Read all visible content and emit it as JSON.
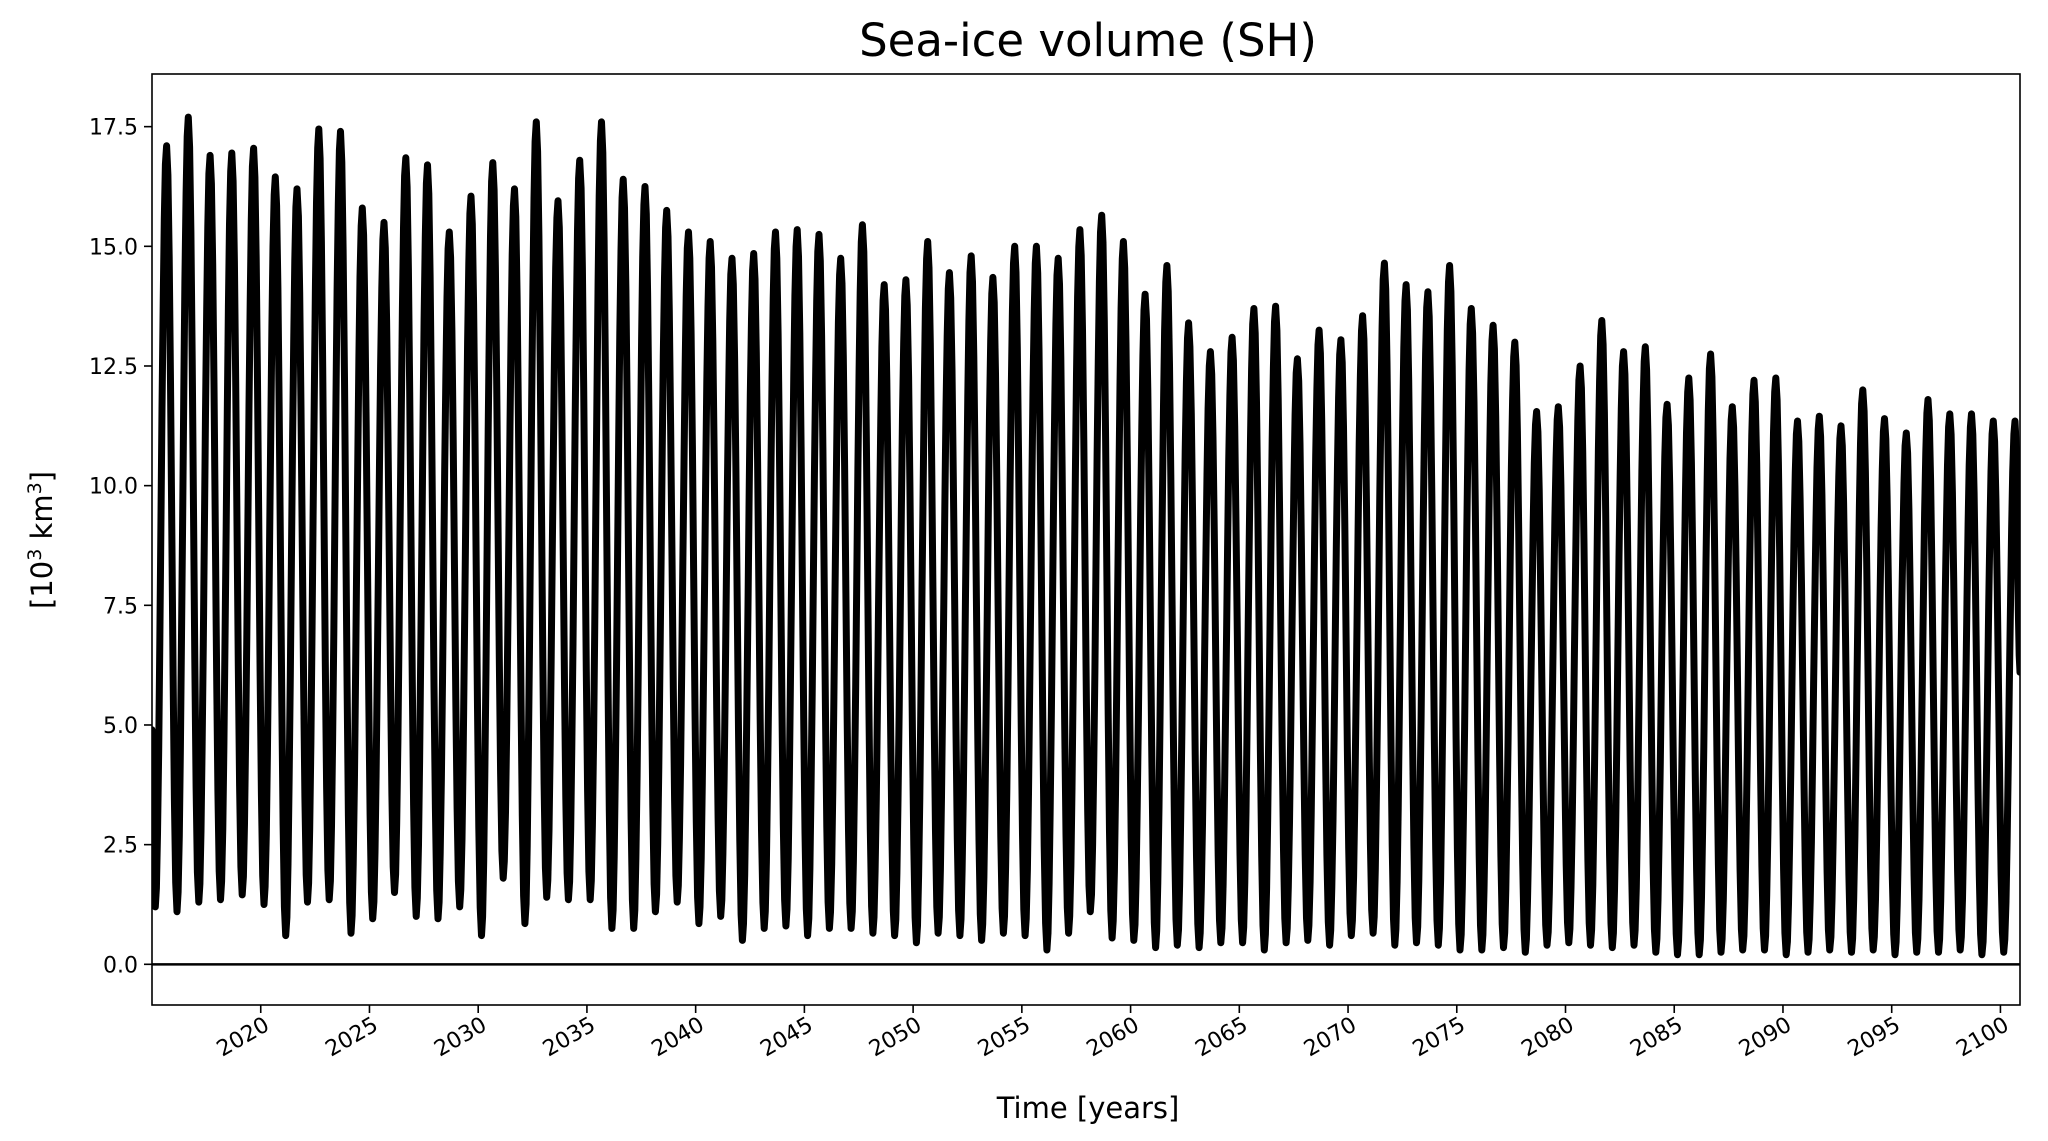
{
  "chart_data": {
    "type": "line",
    "title": "Sea-ice volume (SH)",
    "xlabel": "Time [years]",
    "ylabel_parts": [
      "[10",
      "3",
      " km",
      "3",
      "]"
    ],
    "xlim": [
      2015,
      2100.9
    ],
    "ylim": [
      -0.85,
      18.6
    ],
    "x_ticks": [
      2020,
      2025,
      2030,
      2035,
      2040,
      2045,
      2050,
      2055,
      2060,
      2065,
      2070,
      2075,
      2080,
      2085,
      2090,
      2095,
      2100
    ],
    "x_tick_labels": [
      "2020",
      "2025",
      "2030",
      "2035",
      "2040",
      "2045",
      "2050",
      "2055",
      "2060",
      "2065",
      "2070",
      "2075",
      "2080",
      "2085",
      "2090",
      "2095",
      "2100"
    ],
    "y_ticks": [
      0,
      2.5,
      5,
      7.5,
      10,
      12.5,
      15,
      17.5
    ],
    "y_tick_labels": [
      "0.0",
      "2.5",
      "5.0",
      "7.5",
      "10.0",
      "12.5",
      "15.0",
      "17.5"
    ],
    "reference_line_y": 0,
    "grid": false,
    "line_color": "#000000",
    "series": [
      {
        "seasonal_cycle": "annual maximum near September, annual minimum near February",
        "annual_max_x": [
          2015,
          2016,
          2017,
          2018,
          2019,
          2020,
          2021,
          2022,
          2023,
          2024,
          2025,
          2026,
          2027,
          2028,
          2029,
          2030,
          2031,
          2032,
          2033,
          2034,
          2035,
          2036,
          2037,
          2038,
          2039,
          2040,
          2041,
          2042,
          2043,
          2044,
          2045,
          2046,
          2047,
          2048,
          2049,
          2050,
          2051,
          2052,
          2053,
          2054,
          2055,
          2056,
          2057,
          2058,
          2059,
          2060,
          2061,
          2062,
          2063,
          2064,
          2065,
          2066,
          2067,
          2068,
          2069,
          2070,
          2071,
          2072,
          2073,
          2074,
          2075,
          2076,
          2077,
          2078,
          2079,
          2080,
          2081,
          2082,
          2083,
          2084,
          2085,
          2086,
          2087,
          2088,
          2089,
          2090,
          2091,
          2092,
          2093,
          2094,
          2095,
          2096,
          2097,
          2098,
          2099,
          2100
        ],
        "annual_max": [
          17.1,
          17.7,
          16.9,
          16.95,
          17.05,
          16.45,
          16.2,
          17.45,
          17.4,
          15.8,
          15.5,
          16.85,
          16.7,
          15.3,
          16.05,
          16.75,
          16.2,
          17.6,
          15.95,
          16.8,
          17.6,
          16.4,
          16.25,
          15.75,
          15.3,
          15.1,
          14.75,
          14.85,
          15.3,
          15.35,
          15.25,
          14.75,
          15.45,
          14.2,
          14.3,
          15.1,
          14.45,
          14.8,
          14.35,
          15.0,
          15.0,
          14.75,
          15.35,
          15.65,
          15.1,
          14.0,
          14.6,
          13.4,
          12.8,
          13.1,
          13.7,
          13.75,
          12.65,
          13.25,
          13.05,
          13.55,
          14.65,
          14.2,
          14.05,
          14.6,
          13.7,
          13.35,
          13.0,
          11.55,
          11.65,
          12.5,
          13.45,
          12.8,
          12.9,
          11.7,
          12.25,
          12.75,
          11.65,
          12.2,
          12.25,
          11.35,
          11.45,
          11.25,
          12.0,
          11.4,
          11.1,
          11.8,
          11.5,
          11.5,
          11.35,
          11.35
        ],
        "annual_min_x": [
          2015,
          2016,
          2017,
          2018,
          2019,
          2020,
          2021,
          2022,
          2023,
          2024,
          2025,
          2026,
          2027,
          2028,
          2029,
          2030,
          2031,
          2032,
          2033,
          2034,
          2035,
          2036,
          2037,
          2038,
          2039,
          2040,
          2041,
          2042,
          2043,
          2044,
          2045,
          2046,
          2047,
          2048,
          2049,
          2050,
          2051,
          2052,
          2053,
          2054,
          2055,
          2056,
          2057,
          2058,
          2059,
          2060,
          2061,
          2062,
          2063,
          2064,
          2065,
          2066,
          2067,
          2068,
          2069,
          2070,
          2071,
          2072,
          2073,
          2074,
          2075,
          2076,
          2077,
          2078,
          2079,
          2080,
          2081,
          2082,
          2083,
          2084,
          2085,
          2086,
          2087,
          2088,
          2089,
          2090,
          2091,
          2092,
          2093,
          2094,
          2095,
          2096,
          2097,
          2098,
          2099,
          2100
        ],
        "annual_min": [
          1.2,
          1.1,
          1.3,
          1.35,
          1.45,
          1.25,
          0.6,
          1.3,
          1.35,
          0.65,
          0.95,
          1.5,
          1.0,
          0.95,
          1.2,
          0.6,
          1.8,
          0.85,
          1.4,
          1.35,
          1.35,
          0.75,
          0.75,
          1.1,
          1.3,
          0.85,
          1.0,
          0.5,
          0.75,
          0.8,
          0.6,
          0.75,
          0.75,
          0.65,
          0.6,
          0.45,
          0.65,
          0.6,
          0.5,
          0.65,
          0.6,
          0.3,
          0.65,
          1.1,
          0.55,
          0.5,
          0.35,
          0.4,
          0.35,
          0.45,
          0.45,
          0.3,
          0.45,
          0.5,
          0.4,
          0.6,
          0.65,
          0.4,
          0.45,
          0.4,
          0.3,
          0.3,
          0.35,
          0.25,
          0.4,
          0.45,
          0.4,
          0.35,
          0.4,
          0.25,
          0.2,
          0.2,
          0.25,
          0.3,
          0.3,
          0.2,
          0.25,
          0.3,
          0.25,
          0.3,
          0.2,
          0.25,
          0.25,
          0.3,
          0.2,
          0.25
        ],
        "start_value": 4.9,
        "end_value": 6.1
      }
    ]
  }
}
